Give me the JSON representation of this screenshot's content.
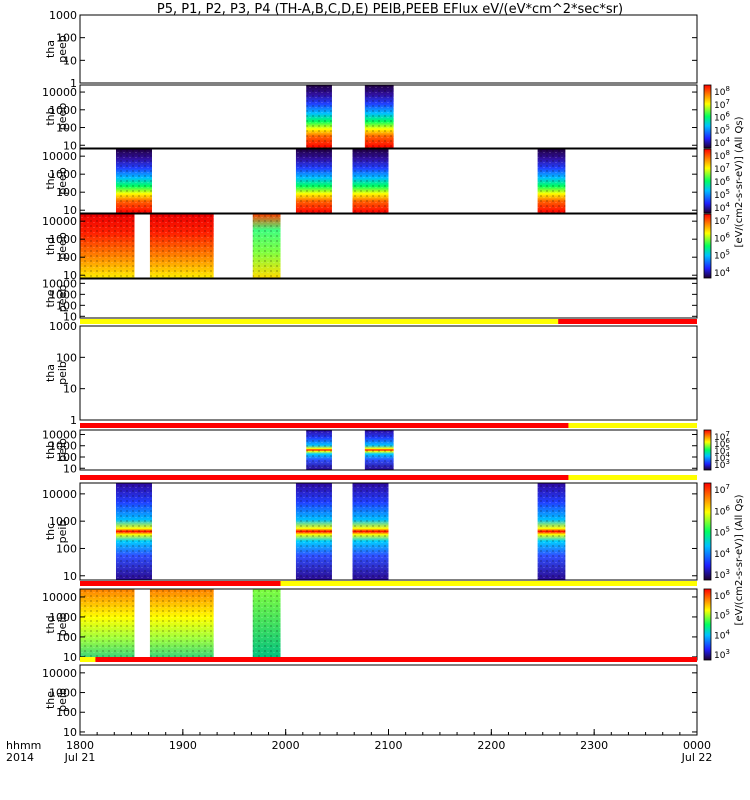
{
  "title": "P5, P1, P2, P3, P4 (TH-A,B,C,D,E) PEIB,PEEB EFlux eV/(eV*cm^2*sec*sr)",
  "colors": {
    "red": "#ff0000",
    "yellow": "#ffff00",
    "blue": "#1010d0",
    "green": "#00cc55"
  },
  "time_axis": {
    "tick_labels": [
      "1800",
      "1900",
      "2000",
      "2100",
      "2200",
      "2300",
      "0000"
    ],
    "tick_hours": [
      18,
      19,
      20,
      21,
      22,
      23,
      24
    ],
    "range_hours": [
      18,
      24
    ],
    "row1_label": "hhmm",
    "row2_label": "2014",
    "start_date": "Jul 21",
    "end_date": "Jul 22"
  },
  "colorbar_labels": {
    "peeb": "[eV/(cm2-s-sr-eV)] (All Qs)",
    "peib": "[eV/(cm2-s-sr-eV)] (All Qs)"
  },
  "chart_data": {
    "type": "heatmap",
    "panels": [
      {
        "probe": "tha",
        "instrument": "peeb",
        "label1": "tha",
        "label2": "peeb",
        "ylog": true,
        "ylim": [
          1,
          1000
        ],
        "yticks": [
          "1",
          "10",
          "100",
          "1000"
        ],
        "spectra": []
      },
      {
        "probe": "thb",
        "instrument": "peeb",
        "label1": "thb",
        "label2": "peeb",
        "ylog": true,
        "ylim": [
          7,
          25000
        ],
        "yticks": [
          "10",
          "100",
          "1000",
          "10000"
        ],
        "spectra": [
          {
            "start": 20.2,
            "end": 20.45,
            "palette": "electron"
          },
          {
            "start": 20.77,
            "end": 21.05,
            "palette": "electron"
          }
        ],
        "colorbar": {
          "ticks": [
            "10^4",
            "10^5",
            "10^6",
            "10^7",
            "10^8"
          ]
        }
      },
      {
        "probe": "thc",
        "instrument": "peeb",
        "label1": "thc",
        "label2": "peeb",
        "ylog": true,
        "ylim": [
          7,
          25000
        ],
        "yticks": [
          "10",
          "100",
          "1000",
          "10000"
        ],
        "spectra": [
          {
            "start": 18.35,
            "end": 18.7,
            "palette": "electron"
          },
          {
            "start": 20.1,
            "end": 20.45,
            "palette": "electron"
          },
          {
            "start": 20.65,
            "end": 21.0,
            "palette": "electron"
          },
          {
            "start": 22.45,
            "end": 22.72,
            "palette": "electron"
          }
        ],
        "colorbar": {
          "ticks": [
            "10^4",
            "10^5",
            "10^6",
            "10^7",
            "10^8"
          ]
        }
      },
      {
        "probe": "thd",
        "instrument": "peeb",
        "label1": "thd",
        "label2": "peeb",
        "ylog": true,
        "ylim": [
          7,
          25000
        ],
        "yticks": [
          "10",
          "100",
          "1000",
          "10000"
        ],
        "spectra": [
          {
            "start": 18.0,
            "end": 18.53,
            "palette": "hot"
          },
          {
            "start": 18.68,
            "end": 19.3,
            "palette": "hot"
          },
          {
            "start": 19.68,
            "end": 19.95,
            "palette": "warm"
          }
        ],
        "colorbar": {
          "ticks": [
            "10^4",
            "10^5",
            "10^6",
            "10^7"
          ]
        }
      },
      {
        "probe": "the",
        "instrument": "peeb",
        "label1": "the",
        "label2": "peeb",
        "ylog": true,
        "ylim": [
          7,
          25000
        ],
        "yticks": [
          "10",
          "100",
          "1000",
          "10000"
        ],
        "spectra": []
      },
      {
        "probe": "tha",
        "instrument": "peib",
        "label1": "tha",
        "label2": "peib",
        "ylog": true,
        "ylim": [
          1,
          1000
        ],
        "yticks": [
          "1",
          "10",
          "100",
          "1000"
        ],
        "mode_bar": [
          {
            "start": 18.0,
            "end": 22.65,
            "color": "yellow"
          },
          {
            "start": 22.65,
            "end": 24.0,
            "color": "red"
          }
        ],
        "spectra": []
      },
      {
        "probe": "thb",
        "instrument": "peib",
        "label1": "thb",
        "label2": "peib",
        "ylog": true,
        "ylim": [
          7,
          25000
        ],
        "yticks": [
          "10",
          "100",
          "1000",
          "10000"
        ],
        "mode_bar": [
          {
            "start": 18.0,
            "end": 22.75,
            "color": "red"
          },
          {
            "start": 22.75,
            "end": 24.0,
            "color": "yellow"
          }
        ],
        "spectra": [
          {
            "start": 20.2,
            "end": 20.45,
            "palette": "ion"
          },
          {
            "start": 20.77,
            "end": 21.05,
            "palette": "ion"
          }
        ],
        "colorbar": {
          "ticks": [
            "10^3",
            "10^4",
            "10^5",
            "10^6",
            "10^7"
          ]
        }
      },
      {
        "probe": "thc",
        "instrument": "peib",
        "label1": "thc",
        "label2": "peib",
        "ylog": true,
        "ylim": [
          7,
          25000
        ],
        "yticks": [
          "10",
          "100",
          "1000",
          "10000"
        ],
        "mode_bar": [
          {
            "start": 18.0,
            "end": 22.75,
            "color": "red"
          },
          {
            "start": 22.75,
            "end": 24.0,
            "color": "yellow"
          }
        ],
        "spectra": [
          {
            "start": 18.35,
            "end": 18.7,
            "palette": "ion"
          },
          {
            "start": 20.1,
            "end": 20.45,
            "palette": "ion"
          },
          {
            "start": 20.65,
            "end": 21.0,
            "palette": "ion"
          },
          {
            "start": 22.45,
            "end": 22.72,
            "palette": "ion"
          }
        ],
        "colorbar": {
          "ticks": [
            "10^3",
            "10^4",
            "10^5",
            "10^6",
            "10^7"
          ]
        }
      },
      {
        "probe": "thd",
        "instrument": "peib",
        "label1": "thd",
        "label2": "peib",
        "ylog": true,
        "ylim": [
          7,
          25000
        ],
        "yticks": [
          "10",
          "100",
          "1000",
          "10000"
        ],
        "mode_bar": [
          {
            "start": 18.0,
            "end": 19.95,
            "color": "red"
          },
          {
            "start": 19.95,
            "end": 24.0,
            "color": "yellow"
          }
        ],
        "spectra": [
          {
            "start": 18.0,
            "end": 18.53,
            "palette": "ionwarm"
          },
          {
            "start": 18.68,
            "end": 19.3,
            "palette": "ionwarm"
          },
          {
            "start": 19.68,
            "end": 19.95,
            "palette": "iongreen"
          }
        ],
        "colorbar": {
          "ticks": [
            "10^3",
            "10^4",
            "10^5",
            "10^6"
          ]
        }
      },
      {
        "probe": "the",
        "instrument": "peib",
        "label1": "the",
        "label2": "peib",
        "ylog": true,
        "ylim": [
          7,
          25000
        ],
        "yticks": [
          "10",
          "100",
          "1000",
          "10000"
        ],
        "mode_bar": [
          {
            "start": 18.0,
            "end": 18.15,
            "color": "yellow"
          },
          {
            "start": 18.15,
            "end": 24.0,
            "color": "red"
          }
        ],
        "spectra": []
      }
    ]
  }
}
